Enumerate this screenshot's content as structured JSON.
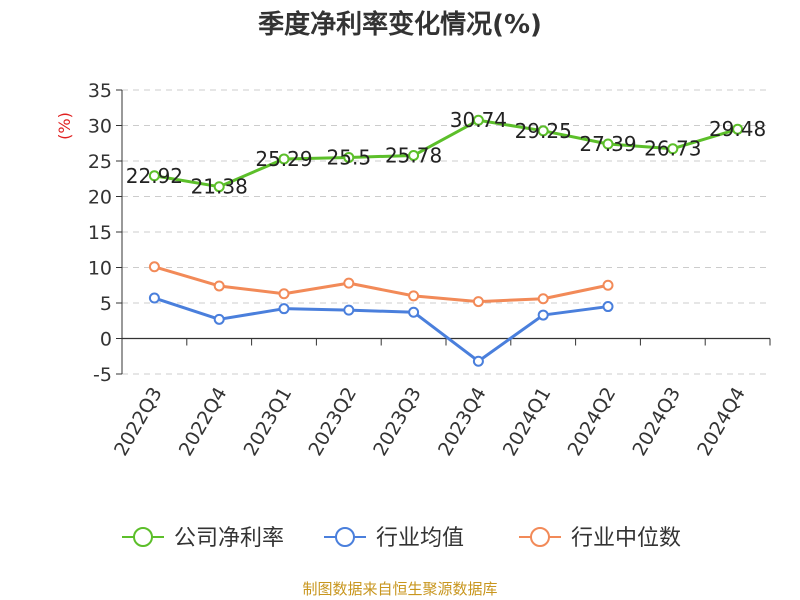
{
  "chart_data": {
    "type": "line",
    "title": "季度净利率变化情况(%)",
    "ylabel": "(%)",
    "xlabel": "",
    "categories": [
      "2022Q3",
      "2022Q4",
      "2023Q1",
      "2023Q2",
      "2023Q3",
      "2023Q4",
      "2024Q1",
      "2024Q2",
      "2024Q3",
      "2024Q4"
    ],
    "ylim": [
      -5,
      35
    ],
    "yticks": [
      -5,
      0,
      5,
      10,
      15,
      20,
      25,
      30,
      35
    ],
    "grid": true,
    "series": [
      {
        "name": "公司净利率",
        "color": "#5cbf2a",
        "show_labels": true,
        "values": [
          22.92,
          21.38,
          25.29,
          25.5,
          25.78,
          30.74,
          29.25,
          27.39,
          26.73,
          29.48
        ],
        "labels": [
          "22.92",
          "21.38",
          "25.29",
          "25.5",
          "25.78",
          "30.74",
          "29.25",
          "27.39",
          "26.73",
          "29.48"
        ]
      },
      {
        "name": "行业均值",
        "color": "#4a7fdc",
        "show_labels": false,
        "values": [
          5.7,
          2.7,
          4.2,
          4.0,
          3.7,
          -3.2,
          3.3,
          4.5,
          null,
          null
        ]
      },
      {
        "name": "行业中位数",
        "color": "#f28a58",
        "show_labels": false,
        "values": [
          10.1,
          7.4,
          6.3,
          7.8,
          6.0,
          5.2,
          5.6,
          7.5,
          null,
          null
        ]
      }
    ],
    "legend_position": "bottom",
    "source": "制图数据来自恒生聚源数据库"
  }
}
